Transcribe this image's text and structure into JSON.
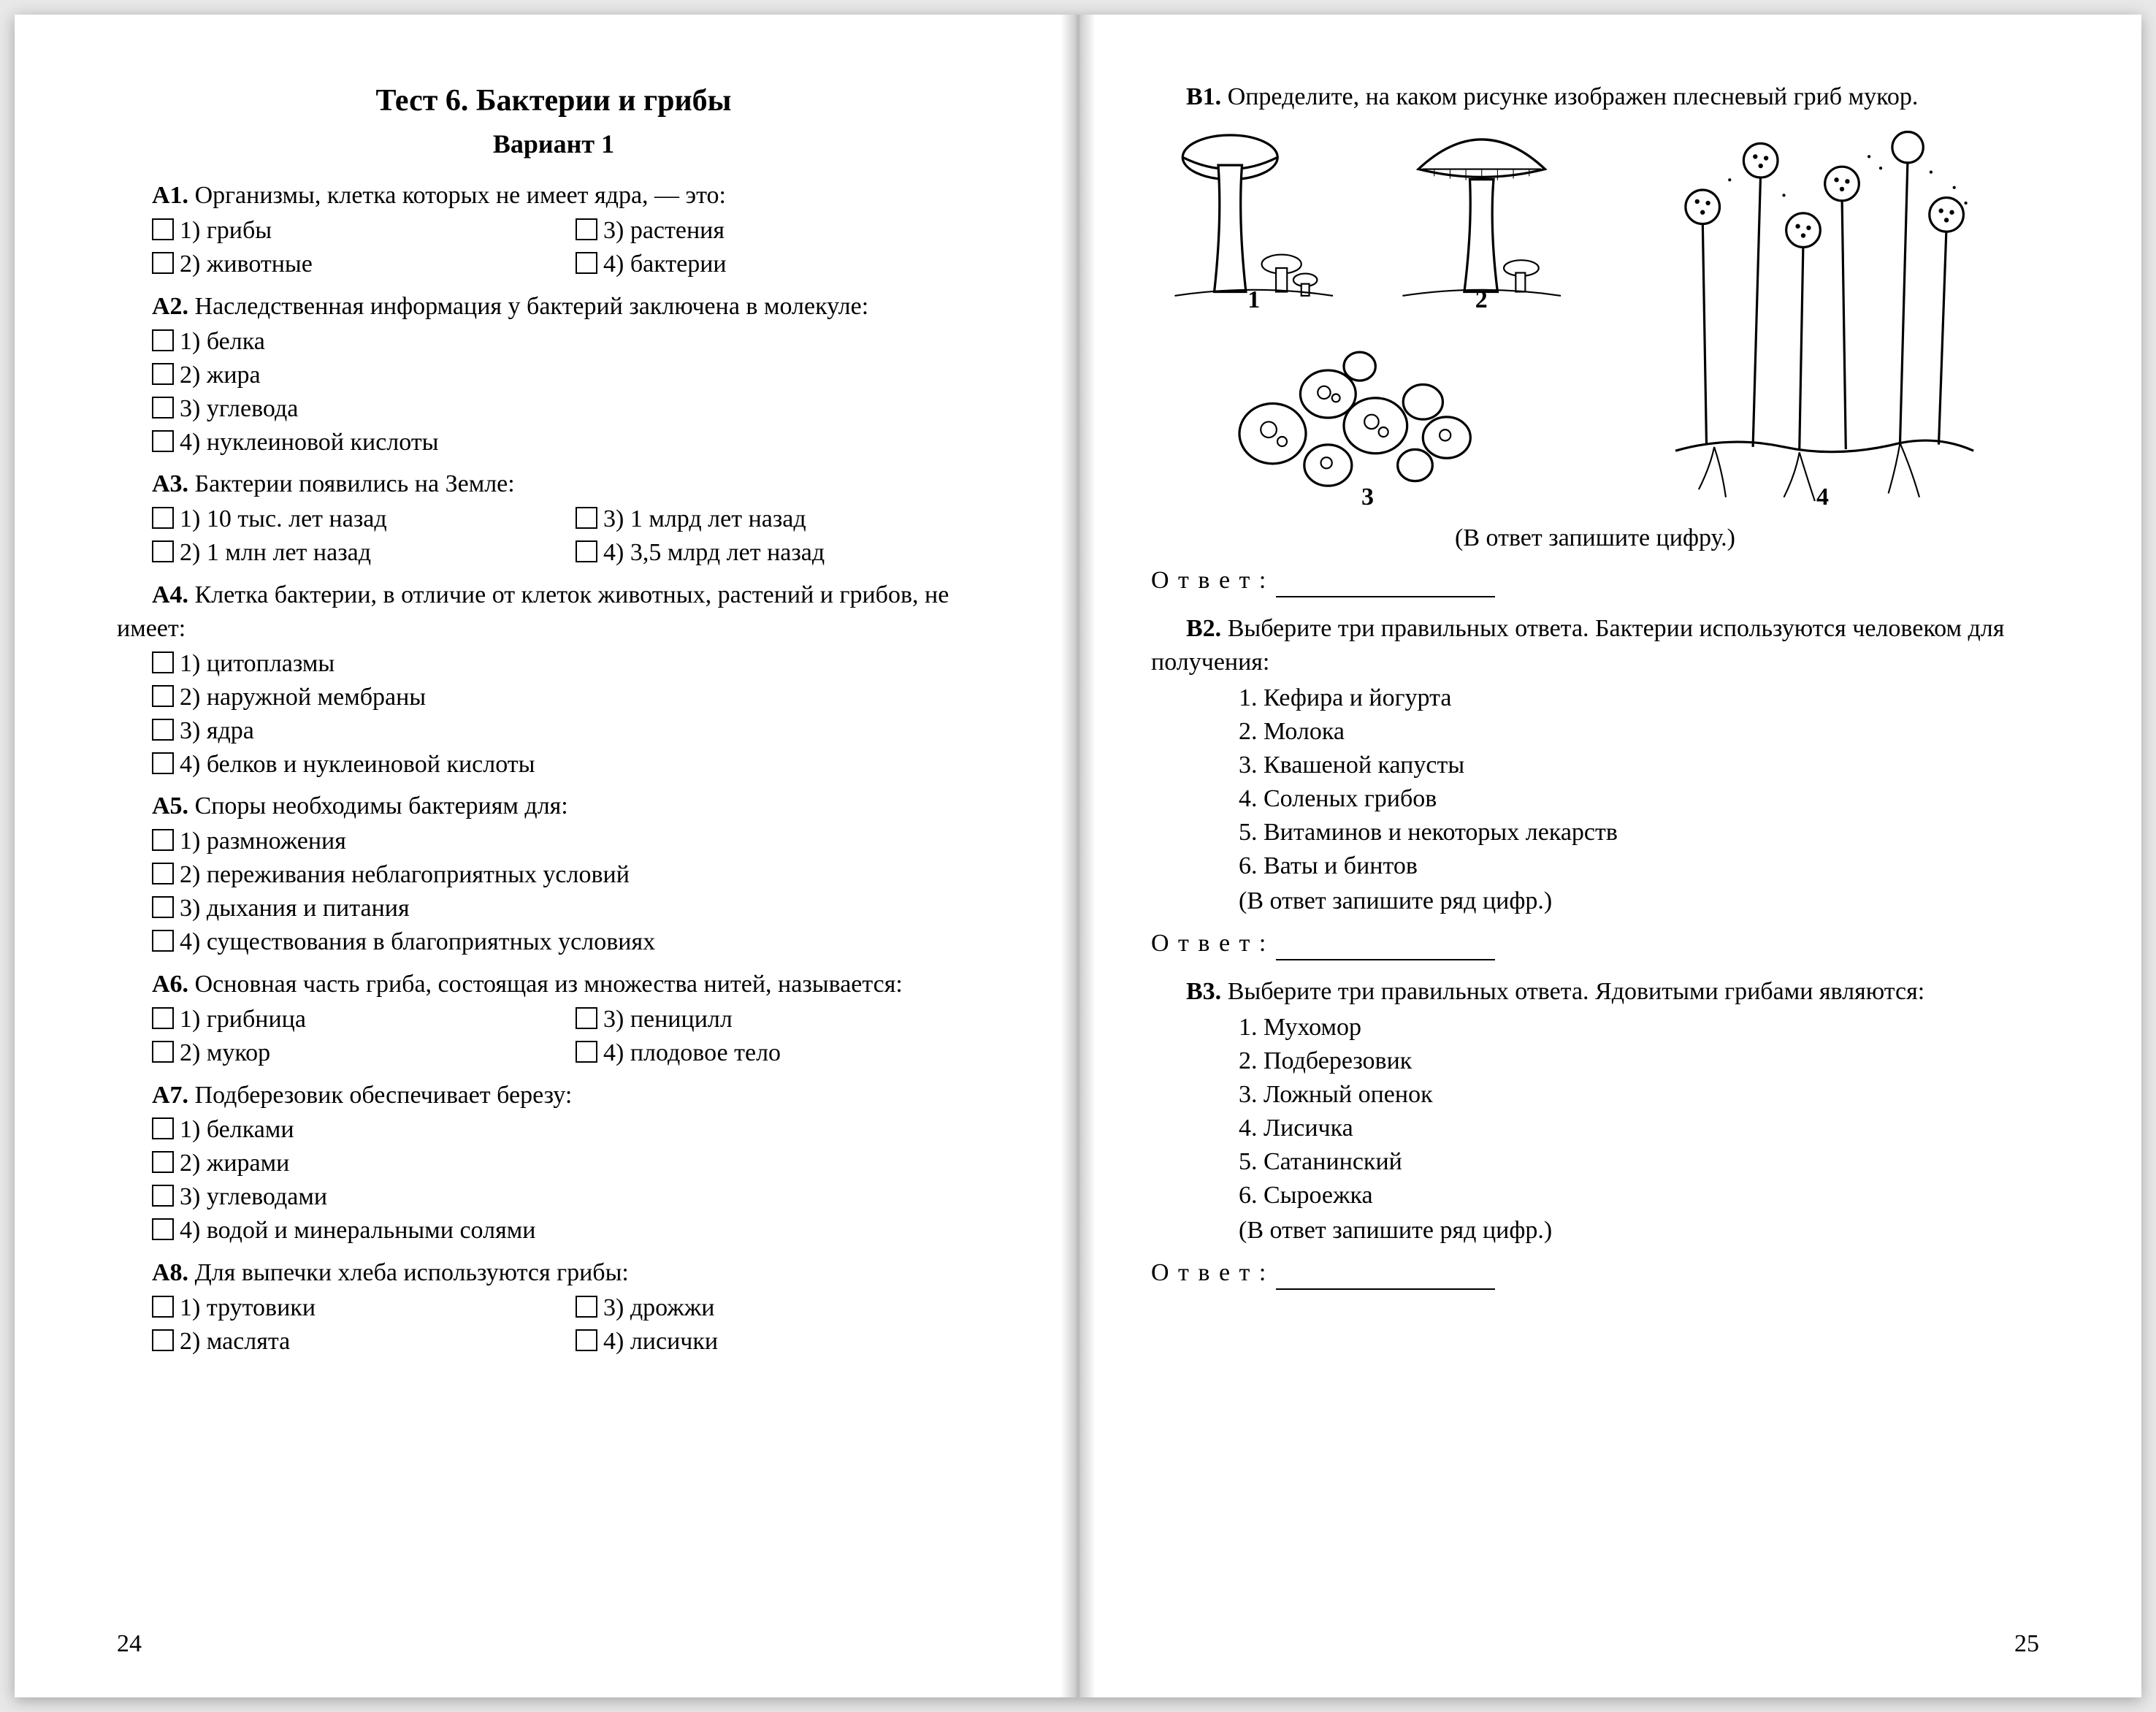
{
  "left": {
    "title": "Тест 6. Бактерии и грибы",
    "variant": "Вариант 1",
    "questions": [
      {
        "code": "А1.",
        "text": "Организмы, клетка которых не имеет ядра, — это:",
        "layout": "grid2",
        "options": [
          "1) грибы",
          "3) растения",
          "2) животные",
          "4) бактерии"
        ]
      },
      {
        "code": "А2.",
        "text": "Наследственная информация у бактерий заключена в молекуле:",
        "layout": "col",
        "options": [
          "1) белка",
          "2) жира",
          "3) углевода",
          "4) нуклеиновой кислоты"
        ]
      },
      {
        "code": "А3.",
        "text": "Бактерии появились на Земле:",
        "layout": "grid2",
        "options": [
          "1) 10 тыс. лет назад",
          "3) 1 млрд лет назад",
          "2) 1 млн лет назад",
          "4) 3,5 млрд лет назад"
        ]
      },
      {
        "code": "А4.",
        "text": "Клетка бактерии, в отличие от клеток животных, растений и грибов, не имеет:",
        "layout": "col",
        "options": [
          "1) цитоплазмы",
          "2) наружной мембраны",
          "3) ядра",
          "4) белков и нуклеиновой кислоты"
        ]
      },
      {
        "code": "А5.",
        "text": "Споры необходимы бактериям для:",
        "layout": "col",
        "options": [
          "1) размножения",
          "2) переживания неблагоприятных условий",
          "3) дыхания и питания",
          "4) существования в благоприятных условиях"
        ]
      },
      {
        "code": "А6.",
        "text": "Основная часть гриба, состоящая из множества нитей, называется:",
        "layout": "grid2",
        "options": [
          "1) грибница",
          "3) пеницилл",
          "2) мукор",
          "4) плодовое тело"
        ]
      },
      {
        "code": "А7.",
        "text": "Подберезовик обеспечивает березу:",
        "layout": "col",
        "options": [
          "1) белками",
          "2) жирами",
          "3) углеводами",
          "4) водой и минеральными солями"
        ]
      },
      {
        "code": "А8.",
        "text": "Для выпечки хлеба используются грибы:",
        "layout": "grid2",
        "options": [
          "1) трутовики",
          "3) дрожжи",
          "2) маслята",
          "4) лисички"
        ]
      }
    ],
    "pagenum": "24"
  },
  "right": {
    "b1_code": "В1.",
    "b1_text": "Определите, на каком рисунке изображен плесневый гриб мукор.",
    "fig_labels": [
      "1",
      "2",
      "3",
      "4"
    ],
    "b1_hint": "(В ответ запишите цифру.)",
    "answer_label": "О т в е т :",
    "b2_code": "В2.",
    "b2_text": "Выберите три правильных ответа. Бактерии используются человеком для получения:",
    "b2_items": [
      "1. Кефира и йогурта",
      "2. Молока",
      "3. Квашеной капусты",
      "4. Соленых грибов",
      "5. Витаминов и некоторых лекарств",
      "6. Ваты и бинтов"
    ],
    "b2_hint": "(В ответ запишите ряд цифр.)",
    "b3_code": "В3.",
    "b3_text": "Выберите три правильных ответа. Ядовитыми грибами являются:",
    "b3_items": [
      "1. Мухомор",
      "2. Подберезовик",
      "3. Ложный опенок",
      "4. Лисичка",
      "5. Сатанинский",
      "6. Сыроежка"
    ],
    "b3_hint": "(В ответ запишите ряд цифр.)",
    "pagenum": "25"
  }
}
